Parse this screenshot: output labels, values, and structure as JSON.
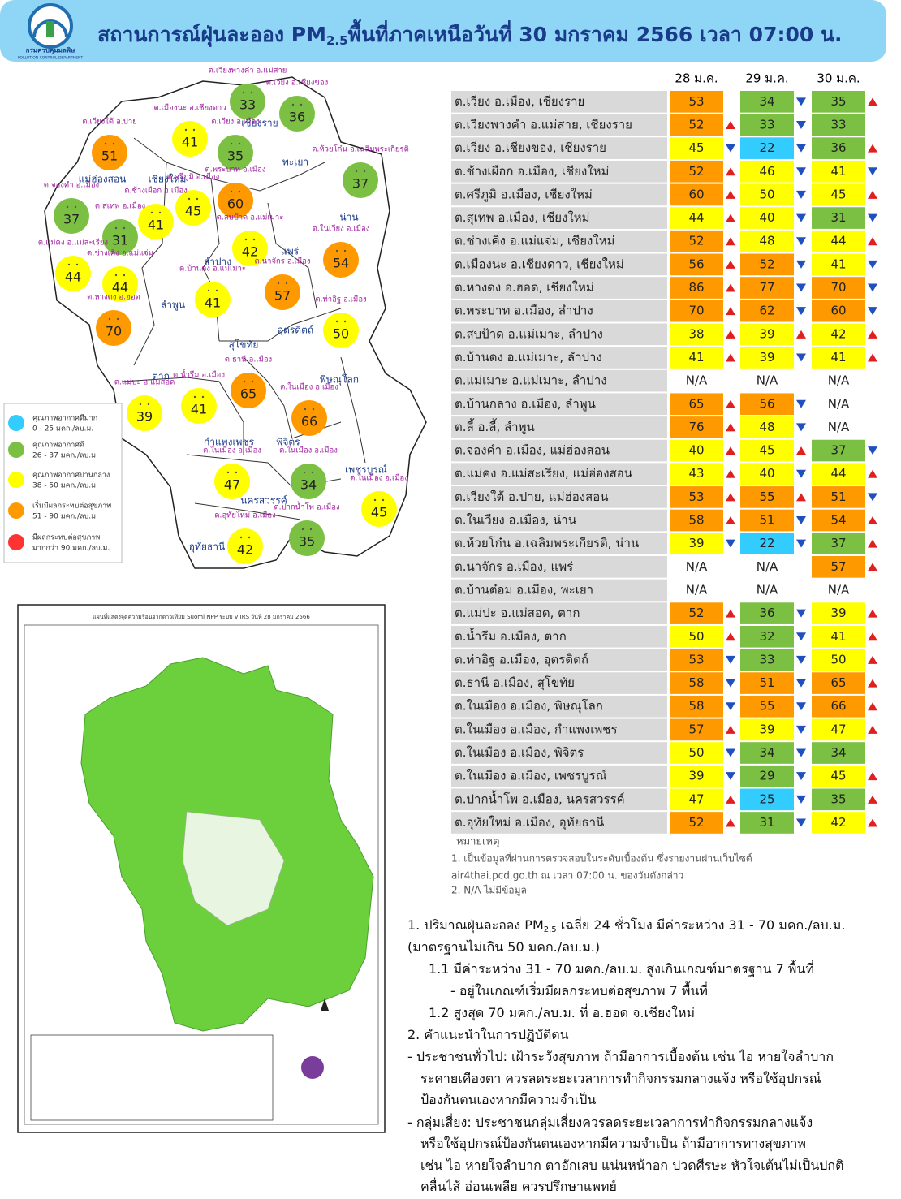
{
  "header": {
    "org_th": "กรมควบคุมมลพิษ",
    "org_en": "POLLUTION CONTROL DEPARTMENT",
    "title_prefix": "สถานการณ์ฝุ่นละออง PM",
    "title_sub": "2.5",
    "title_suffix": "พื้นที่ภาคเหนือวันที่ 30 มกราคม 2566 เวลา 07:00 น."
  },
  "levels": [
    {
      "name": "คุณภาพอากาศดีมาก",
      "range": "0 - 25 มคก./ลบ.ม.",
      "max": 25,
      "color": "#33ccff"
    },
    {
      "name": "คุณภาพอากาศดี",
      "range": "26 - 37 มคก./ลบ.ม.",
      "max": 37,
      "color": "#7bc043"
    },
    {
      "name": "คุณภาพอากาศปานกลาง",
      "range": "38 - 50 มคก./ลบ.ม.",
      "max": 50,
      "color": "#ffff00"
    },
    {
      "name": "เริ่มมีผลกระทบต่อสุขภาพ",
      "range": "51 - 90 มคก./ลบ.ม.",
      "max": 90,
      "color": "#ff9900"
    },
    {
      "name": "มีผลกระทบต่อสุขภาพ",
      "range": "มากกว่า 90 มคก./ลบ.ม.",
      "max": null,
      "color": "#ff3333"
    }
  ],
  "map": {
    "provinces": [
      "เชียงราย",
      "แม่ฮ่องสอน",
      "เชียงใหม่",
      "พะเยา",
      "น่าน",
      "ลำปาง",
      "แพร่",
      "ลำพูน",
      "อุตรดิตถ์",
      "สุโขทัย",
      "ตาก",
      "พิษณุโลก",
      "กำแพงเพชร",
      "พิจิตร",
      "เพชรบูรณ์",
      "นครสวรรค์",
      "อุทัยธานี"
    ],
    "markers": [
      {
        "label": "ต.เวียงพางคำ อ.แม่สาย",
        "value": 33
      },
      {
        "label": "ต.เวียง อ.เชียงของ",
        "value": 36
      },
      {
        "label": "ต.เมืองนะ อ.เชียงดาว",
        "value": 41
      },
      {
        "label": "ต.เวียง อ.เมือง",
        "value": 35
      },
      {
        "label": "ต.เวียงใต้ อ.ปาย",
        "value": 51
      },
      {
        "label": "ต.ห้วยโก๋น อ.เฉลิมพระเกียรติ",
        "value": 37
      },
      {
        "label": "ต.พระบาท อ.เมือง",
        "value": 60
      },
      {
        "label": "ต.ศรีภูมิ อ.เมือง",
        "value": 45
      },
      {
        "label": "ต.ช้างเผือก อ.เมือง",
        "value": 41
      },
      {
        "label": "ต.จองคำ อ.เมือง",
        "value": 37
      },
      {
        "label": "ต.สุเทพ อ.เมือง",
        "value": 31
      },
      {
        "label": "ต.สบป้าด อ.แม่เมาะ",
        "value": 42
      },
      {
        "label": "ต.ในเวียง อ.เมือง",
        "value": 54
      },
      {
        "label": "ต.แม่คง อ.แม่สะเรียง",
        "value": 44
      },
      {
        "label": "ต.ช่างเคิ่ง อ.แม่แจ่ม",
        "value": 44
      },
      {
        "label": "ต.นาจักร อ.เมือง",
        "value": 57
      },
      {
        "label": "ต.บ้านดง อ.แม่เมาะ",
        "value": 41
      },
      {
        "label": "ต.หางดง อ.ฮอด",
        "value": 70
      },
      {
        "label": "ต.ท่าอิฐ อ.เมือง",
        "value": 50
      },
      {
        "label": "ต.ธานี อ.เมือง",
        "value": 65
      },
      {
        "label": "ต.ในเมือง อ.เมือง",
        "value": 66
      },
      {
        "label": "ต.แม่ปะ อ.แม่สอด",
        "value": 39
      },
      {
        "label": "ต.น้ำรึม อ.เมือง",
        "value": 41
      },
      {
        "label": "ต.ในเมือง อ.เมือง",
        "value": 47
      },
      {
        "label": "ต.ในเมือง อ.เมือง",
        "value": 34
      },
      {
        "label": "ต.ในเมือง อ.เมือง",
        "value": 45
      },
      {
        "label": "ต.อุทัยใหม่ อ.เมือง",
        "value": 42
      },
      {
        "label": "ต.ปากน้ำโพ อ.เมือง",
        "value": 35
      }
    ]
  },
  "satellite_map": {
    "title": "แผนที่แสดงจุดความร้อนจากดาวเทียม Suomi NPP ระบบ VIIRS  วันที่ 28 มกราคม 2566"
  },
  "table": {
    "columns": [
      "28 ม.ค.",
      "29 ม.ค.",
      "30 ม.ค."
    ],
    "rows": [
      {
        "station": "ต.เวียง อ.เมือง, เชียงราย",
        "values": [
          53,
          34,
          35
        ],
        "trends": [
          null,
          "down",
          "up"
        ]
      },
      {
        "station": "ต.เวียงพางคำ อ.แม่สาย, เชียงราย",
        "values": [
          52,
          33,
          33
        ],
        "trends": [
          "up",
          "down",
          null
        ]
      },
      {
        "station": "ต.เวียง อ.เชียงของ, เชียงราย",
        "values": [
          45,
          22,
          36
        ],
        "trends": [
          "down",
          "down",
          "up"
        ]
      },
      {
        "station": "ต.ช้างเผือก อ.เมือง, เชียงใหม่",
        "values": [
          52,
          46,
          41
        ],
        "trends": [
          "up",
          "down",
          "down"
        ]
      },
      {
        "station": "ต.ศรีภูมิ อ.เมือง, เชียงใหม่",
        "values": [
          60,
          50,
          45
        ],
        "trends": [
          "up",
          "down",
          "up"
        ]
      },
      {
        "station": "ต.สุเทพ อ.เมือง, เชียงใหม่",
        "values": [
          44,
          40,
          31
        ],
        "trends": [
          "up",
          "down",
          "down"
        ]
      },
      {
        "station": "ต.ช่างเคิ่ง อ.แม่แจ่ม, เชียงใหม่",
        "values": [
          52,
          48,
          44
        ],
        "trends": [
          "up",
          "down",
          "up"
        ]
      },
      {
        "station": "ต.เมืองนะ อ.เชียงดาว, เชียงใหม่",
        "values": [
          56,
          52,
          41
        ],
        "trends": [
          "up",
          "down",
          "down"
        ]
      },
      {
        "station": "ต.หางดง อ.ฮอด, เชียงใหม่",
        "values": [
          86,
          77,
          70
        ],
        "trends": [
          "up",
          "down",
          "down"
        ]
      },
      {
        "station": "ต.พระบาท อ.เมือง, ลำปาง",
        "values": [
          70,
          62,
          60
        ],
        "trends": [
          "up",
          "down",
          "down"
        ]
      },
      {
        "station": "ต.สบป้าด อ.แม่เมาะ, ลำปาง",
        "values": [
          38,
          39,
          42
        ],
        "trends": [
          "up",
          "up",
          "up"
        ]
      },
      {
        "station": "ต.บ้านดง อ.แม่เมาะ, ลำปาง",
        "values": [
          41,
          39,
          41
        ],
        "trends": [
          "up",
          "down",
          "up"
        ]
      },
      {
        "station": "ต.แม่เมาะ อ.แม่เมาะ, ลำปาง",
        "values": [
          "N/A",
          "N/A",
          "N/A"
        ],
        "trends": [
          null,
          null,
          null
        ]
      },
      {
        "station": "ต.บ้านกลาง อ.เมือง, ลำพูน",
        "values": [
          65,
          56,
          "N/A"
        ],
        "trends": [
          "up",
          "down",
          null
        ]
      },
      {
        "station": "ต.ลี้ อ.ลี้, ลำพูน",
        "values": [
          76,
          48,
          "N/A"
        ],
        "trends": [
          "up",
          "down",
          null
        ]
      },
      {
        "station": "ต.จองคำ อ.เมือง, แม่ฮ่องสอน",
        "values": [
          40,
          45,
          37
        ],
        "trends": [
          "up",
          "up",
          "down"
        ]
      },
      {
        "station": "ต.แม่คง อ.แม่สะเรียง, แม่ฮ่องสอน",
        "values": [
          43,
          40,
          44
        ],
        "trends": [
          "up",
          "down",
          "up"
        ]
      },
      {
        "station": "ต.เวียงใต้ อ.ปาย, แม่ฮ่องสอน",
        "values": [
          53,
          55,
          51
        ],
        "trends": [
          "up",
          "up",
          "down"
        ]
      },
      {
        "station": "ต.ในเวียง อ.เมือง, น่าน",
        "values": [
          58,
          51,
          54
        ],
        "trends": [
          "up",
          "down",
          "up"
        ]
      },
      {
        "station": "ต.ห้วยโก๋น อ.เฉลิมพระเกียรติ, น่าน",
        "values": [
          39,
          22,
          37
        ],
        "trends": [
          "down",
          "down",
          "up"
        ]
      },
      {
        "station": "ต.นาจักร อ.เมือง, แพร่",
        "values": [
          "N/A",
          "N/A",
          57
        ],
        "trends": [
          null,
          null,
          "up"
        ]
      },
      {
        "station": "ต.บ้านต๋อม อ.เมือง, พะเยา",
        "values": [
          "N/A",
          "N/A",
          "N/A"
        ],
        "trends": [
          null,
          null,
          null
        ]
      },
      {
        "station": "ต.แม่ปะ อ.แม่สอด, ตาก",
        "values": [
          52,
          36,
          39
        ],
        "trends": [
          "up",
          "down",
          "up"
        ]
      },
      {
        "station": "ต.น้ำรึม อ.เมือง, ตาก",
        "values": [
          50,
          32,
          41
        ],
        "trends": [
          "up",
          "down",
          "up"
        ]
      },
      {
        "station": "ต.ท่าอิฐ อ.เมือง, อุตรดิตถ์",
        "values": [
          53,
          33,
          50
        ],
        "trends": [
          "down",
          "down",
          "up"
        ]
      },
      {
        "station": "ต.ธานี อ.เมือง, สุโขทัย",
        "values": [
          58,
          51,
          65
        ],
        "trends": [
          "down",
          "down",
          "up"
        ]
      },
      {
        "station": "ต.ในเมือง อ.เมือง, พิษณุโลก",
        "values": [
          58,
          55,
          66
        ],
        "trends": [
          "down",
          "down",
          "up"
        ]
      },
      {
        "station": "ต.ในเมือง อ.เมือง, กำแพงเพชร",
        "values": [
          57,
          39,
          47
        ],
        "trends": [
          "up",
          "down",
          "up"
        ]
      },
      {
        "station": "ต.ในเมือง อ.เมือง, พิจิตร",
        "values": [
          50,
          34,
          34
        ],
        "trends": [
          "down",
          "down",
          null
        ]
      },
      {
        "station": "ต.ในเมือง อ.เมือง, เพชรบูรณ์",
        "values": [
          39,
          29,
          45
        ],
        "trends": [
          "down",
          "down",
          "up"
        ]
      },
      {
        "station": "ต.ปากน้ำโพ อ.เมือง, นครสวรรค์",
        "values": [
          47,
          25,
          35
        ],
        "trends": [
          "up",
          "down",
          "up"
        ]
      },
      {
        "station": "ต.อุทัยใหม่ อ.เมือง, อุทัยธานี",
        "values": [
          52,
          31,
          42
        ],
        "trends": [
          "up",
          "down",
          "up"
        ]
      }
    ]
  },
  "notes": {
    "title": "หมายเหตุ",
    "lines": [
      "1. เป็นข้อมูลที่ผ่านการตรวจสอบในระดับเบื้องต้น ซึ่งรายงานผ่านเว็บไซต์",
      "air4thai.pcd.go.th ณ เวลา 07:00 น. ของวันดังกล่าว",
      "2. N/A ไม่มีข้อมูล"
    ]
  },
  "summary": [
    {
      "text": "1. ปริมาณฝุ่นละออง PM",
      "sub": "2.5",
      "rest": " เฉลี่ย 24 ชั่วโมง มีค่าระหว่าง 31 - 70 มคก./ลบ.ม."
    },
    {
      "text": "(มาตรฐานไม่เกิน 50 มคก./ลบ.ม.)"
    },
    {
      "text": "1.1 มีค่าระหว่าง 31 - 70  มคก./ลบ.ม. สูงเกินเกณฑ์มาตรฐาน 7 พื้นที่"
    },
    {
      "text": "- อยู่ในเกณฑ์เริ่มมีผลกระทบต่อสุขภาพ 7 พื้นที่"
    },
    {
      "text": "1.2 สูงสุด 70 มคก./ลบ.ม. ที่ อ.ฮอด จ.เชียงใหม่"
    },
    {
      "text": "2. คำแนะนำในการปฏิบัติตน"
    },
    {
      "text": "- ประชาชนทั่วไป: เฝ้าระวังสุขภาพ ถ้ามีอาการเบื้องต้น เช่น ไอ หายใจลำบาก"
    },
    {
      "text": "ระคายเคืองตา ควรลดระยะเวลาการทำกิจกรรมกลางแจ้ง หรือใช้อุปกรณ์"
    },
    {
      "text": "ป้องกันตนเองหากมีความจำเป็น"
    },
    {
      "text": "- กลุ่มเสี่ยง: ประชาชนกลุ่มเสี่ยงควรลดระยะเวลาการทำกิจกรรมกลางแจ้ง"
    },
    {
      "text": "หรือใช้อุปกรณ์ป้องกันตนเองหากมีความจำเป็น ถ้ามีอาการทางสุขภาพ"
    },
    {
      "text": "เช่น ไอ หายใจลำบาก ตาอักเสบ แน่นหน้าอก ปวดศีรษะ หัวใจเต้นไม่เป็นปกติ"
    },
    {
      "text": "คลื่นไส้ อ่อนเพลีย ควรปรึกษาแพทย์"
    }
  ]
}
